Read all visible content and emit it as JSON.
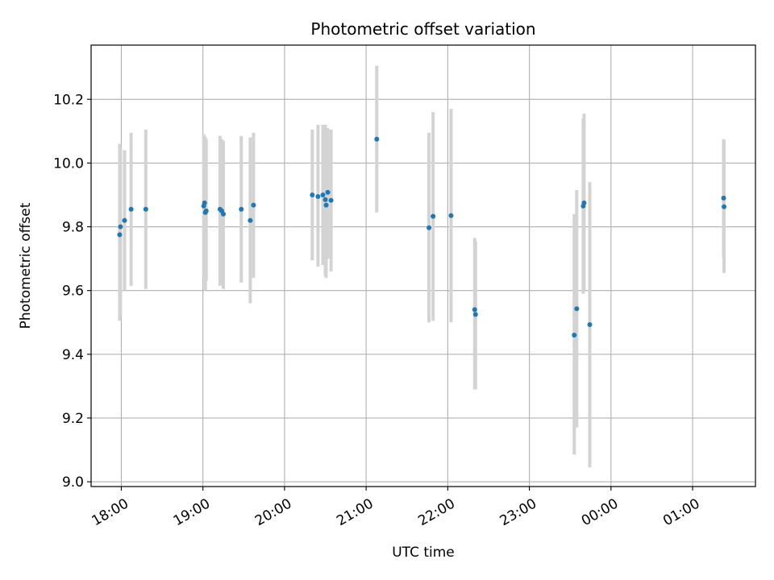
{
  "chart_data": {
    "type": "scatter",
    "title": "Photometric offset variation",
    "xlabel": "UTC time",
    "ylabel": "Photometric offset",
    "x_axis_unit": "hours since 00:00 of first night; values >24 continue past midnight",
    "xlim": [
      17.63,
      25.77
    ],
    "ylim": [
      8.985,
      10.37
    ],
    "grid": true,
    "x_ticks": [
      {
        "value": 18,
        "label": "18:00"
      },
      {
        "value": 19,
        "label": "19:00"
      },
      {
        "value": 20,
        "label": "20:00"
      },
      {
        "value": 21,
        "label": "21:00"
      },
      {
        "value": 22,
        "label": "22:00"
      },
      {
        "value": 23,
        "label": "23:00"
      },
      {
        "value": 24,
        "label": "00:00"
      },
      {
        "value": 25,
        "label": "01:00"
      }
    ],
    "y_ticks": [
      {
        "value": 9.0,
        "label": "9.0"
      },
      {
        "value": 9.2,
        "label": "9.2"
      },
      {
        "value": 9.4,
        "label": "9.4"
      },
      {
        "value": 9.6,
        "label": "9.6"
      },
      {
        "value": 9.8,
        "label": "9.8"
      },
      {
        "value": 10.0,
        "label": "10.0"
      },
      {
        "value": 10.2,
        "label": "10.2"
      }
    ],
    "colors": {
      "point": "#1f77b4",
      "errorbar": "#d3d3d3",
      "grid": "#b0b0b0"
    },
    "series": [
      {
        "marker": "point",
        "points": [
          {
            "x": 17.98,
            "y": 9.775,
            "err_low": 9.505,
            "err_high": 10.06
          },
          {
            "x": 17.99,
            "y": 9.8,
            "err_low": 9.52,
            "err_high": 10.05
          },
          {
            "x": 18.04,
            "y": 9.82,
            "err_low": 9.6,
            "err_high": 10.04
          },
          {
            "x": 18.12,
            "y": 9.855,
            "err_low": 9.615,
            "err_high": 10.095
          },
          {
            "x": 18.3,
            "y": 9.855,
            "err_low": 9.605,
            "err_high": 10.105
          },
          {
            "x": 19.01,
            "y": 9.865,
            "err_low": 9.64,
            "err_high": 10.09
          },
          {
            "x": 19.02,
            "y": 9.875,
            "err_low": 9.64,
            "err_high": 10.085
          },
          {
            "x": 19.03,
            "y": 9.845,
            "err_low": 9.6,
            "err_high": 10.08
          },
          {
            "x": 19.04,
            "y": 9.85,
            "err_low": 9.63,
            "err_high": 10.075
          },
          {
            "x": 19.21,
            "y": 9.855,
            "err_low": 9.615,
            "err_high": 10.085
          },
          {
            "x": 19.23,
            "y": 9.85,
            "err_low": 9.62,
            "err_high": 10.075
          },
          {
            "x": 19.25,
            "y": 9.84,
            "err_low": 9.605,
            "err_high": 10.07
          },
          {
            "x": 19.47,
            "y": 9.855,
            "err_low": 9.625,
            "err_high": 10.085
          },
          {
            "x": 19.58,
            "y": 9.82,
            "err_low": 9.56,
            "err_high": 10.08
          },
          {
            "x": 19.62,
            "y": 9.868,
            "err_low": 9.64,
            "err_high": 10.095
          },
          {
            "x": 20.34,
            "y": 9.9,
            "err_low": 9.695,
            "err_high": 10.105
          },
          {
            "x": 20.41,
            "y": 9.895,
            "err_low": 9.675,
            "err_high": 10.12
          },
          {
            "x": 20.47,
            "y": 9.9,
            "err_low": 9.68,
            "err_high": 10.12
          },
          {
            "x": 20.5,
            "y": 9.885,
            "err_low": 9.645,
            "err_high": 10.12
          },
          {
            "x": 20.51,
            "y": 9.868,
            "err_low": 9.64,
            "err_high": 10.11
          },
          {
            "x": 20.53,
            "y": 9.908,
            "err_low": 9.7,
            "err_high": 10.11
          },
          {
            "x": 20.57,
            "y": 9.883,
            "err_low": 9.66,
            "err_high": 10.105
          },
          {
            "x": 21.13,
            "y": 10.075,
            "err_low": 9.845,
            "err_high": 10.305
          },
          {
            "x": 21.77,
            "y": 9.797,
            "err_low": 9.5,
            "err_high": 10.095
          },
          {
            "x": 21.82,
            "y": 9.833,
            "err_low": 9.505,
            "err_high": 10.16
          },
          {
            "x": 22.04,
            "y": 9.835,
            "err_low": 9.5,
            "err_high": 10.17
          },
          {
            "x": 22.33,
            "y": 9.54,
            "err_low": 9.29,
            "err_high": 9.765
          },
          {
            "x": 22.34,
            "y": 9.525,
            "err_low": 9.29,
            "err_high": 9.755
          },
          {
            "x": 23.55,
            "y": 9.46,
            "err_low": 9.085,
            "err_high": 9.84
          },
          {
            "x": 23.58,
            "y": 9.543,
            "err_low": 9.17,
            "err_high": 9.915
          },
          {
            "x": 23.66,
            "y": 9.865,
            "err_low": 9.59,
            "err_high": 10.14
          },
          {
            "x": 23.67,
            "y": 9.875,
            "err_low": 9.6,
            "err_high": 10.155
          },
          {
            "x": 23.74,
            "y": 9.493,
            "err_low": 9.045,
            "err_high": 9.94
          },
          {
            "x": 25.38,
            "y": 9.89,
            "err_low": 9.705,
            "err_high": 10.075
          },
          {
            "x": 25.385,
            "y": 9.863,
            "err_low": 9.655,
            "err_high": 10.07
          }
        ]
      }
    ]
  }
}
